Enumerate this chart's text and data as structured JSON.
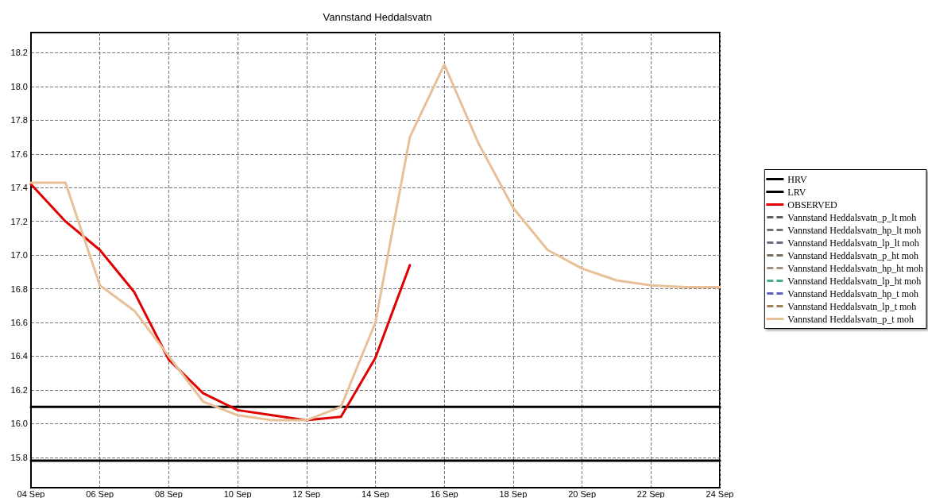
{
  "chart_data": {
    "type": "line",
    "title": "Vannstand Heddalsvatn",
    "x": [
      "--09-04",
      "--09-05",
      "--09-06",
      "--09-07",
      "--09-08",
      "--09-09",
      "--09-10",
      "--09-11",
      "--09-12",
      "--09-13",
      "--09-14",
      "--09-15",
      "--09-16",
      "--09-17",
      "--09-18",
      "--09-19",
      "--09-20",
      "--09-21",
      "--09-22",
      "--09-23",
      "--09-24"
    ],
    "series": [
      {
        "name": "HRV",
        "color": "#000000",
        "x": [
          "--09-04",
          "--09-24"
        ],
        "values": [
          16.1,
          16.1
        ]
      },
      {
        "name": "LRV",
        "color": "#000000",
        "x": [
          "--09-04",
          "--09-24"
        ],
        "values": [
          15.78,
          15.78
        ]
      },
      {
        "name": "OBSERVED",
        "color": "#e00000",
        "values": [
          17.42,
          17.2,
          17.03,
          16.78,
          16.38,
          16.18,
          16.08,
          16.05,
          16.02,
          16.04,
          16.39,
          16.94,
          null,
          null,
          null,
          null,
          null,
          null,
          null,
          null,
          null
        ]
      },
      {
        "name": "Vannstand Heddalsvatn_p_lt moh",
        "color": "#606060",
        "line_style": "dashed",
        "values": [
          null,
          null,
          null,
          null,
          null,
          null,
          null,
          null,
          null,
          null,
          null,
          null,
          null,
          null,
          null,
          null,
          null,
          null,
          null,
          null,
          null
        ]
      },
      {
        "name": "Vannstand Heddalsvatn_hp_lt moh",
        "color": "#707070",
        "line_style": "dashed",
        "values": [
          null,
          null,
          null,
          null,
          null,
          null,
          null,
          null,
          null,
          null,
          null,
          null,
          null,
          null,
          null,
          null,
          null,
          null,
          null,
          null,
          null
        ]
      },
      {
        "name": "Vannstand Heddalsvatn_lp_lt moh",
        "color": "#6a6a80",
        "line_style": "dashed",
        "values": [
          null,
          null,
          null,
          null,
          null,
          null,
          null,
          null,
          null,
          null,
          null,
          null,
          null,
          null,
          null,
          null,
          null,
          null,
          null,
          null,
          null
        ]
      },
      {
        "name": "Vannstand Heddalsvatn_p_ht moh",
        "color": "#7a7060",
        "line_style": "dashed",
        "values": [
          null,
          null,
          null,
          null,
          null,
          null,
          null,
          null,
          null,
          null,
          null,
          null,
          null,
          null,
          null,
          null,
          null,
          null,
          null,
          null,
          null
        ]
      },
      {
        "name": "Vannstand Heddalsvatn_hp_ht moh",
        "color": "#a09080",
        "line_style": "dashed",
        "values": [
          null,
          null,
          null,
          null,
          null,
          null,
          null,
          null,
          null,
          null,
          null,
          null,
          null,
          null,
          null,
          null,
          null,
          null,
          null,
          null,
          null
        ]
      },
      {
        "name": "Vannstand Heddalsvatn_lp_ht moh",
        "color": "#40b090",
        "line_style": "dashed",
        "values": [
          null,
          null,
          null,
          null,
          null,
          null,
          null,
          null,
          null,
          null,
          null,
          null,
          null,
          null,
          null,
          null,
          null,
          null,
          null,
          null,
          null
        ]
      },
      {
        "name": "Vannstand Heddalsvatn_hp_t moh",
        "color": "#6060c0",
        "line_style": "dashed",
        "values": [
          null,
          null,
          null,
          null,
          null,
          null,
          null,
          null,
          null,
          null,
          null,
          null,
          null,
          null,
          null,
          null,
          null,
          null,
          null,
          null,
          null
        ]
      },
      {
        "name": "Vannstand Heddalsvatn_lp_t moh",
        "color": "#a08060",
        "line_style": "dashed",
        "values": [
          null,
          null,
          null,
          null,
          null,
          null,
          null,
          null,
          null,
          null,
          null,
          null,
          null,
          null,
          null,
          null,
          null,
          null,
          null,
          null,
          null
        ]
      },
      {
        "name": "Vannstand Heddalsvatn_p_t moh",
        "color": "#e8c098",
        "values": [
          17.43,
          17.43,
          16.82,
          16.67,
          16.4,
          16.13,
          16.05,
          16.02,
          16.02,
          16.1,
          16.6,
          17.7,
          18.13,
          17.66,
          17.28,
          17.03,
          16.92,
          16.85,
          16.82,
          16.81,
          16.81
        ]
      }
    ],
    "xlim": [
      "--09-04",
      "--09-24"
    ],
    "xticks": [
      {
        "value": "--09-04",
        "label": "04 Sep"
      },
      {
        "value": "--09-06",
        "label": "06 Sep"
      },
      {
        "value": "--09-08",
        "label": "08 Sep"
      },
      {
        "value": "--09-10",
        "label": "10 Sep"
      },
      {
        "value": "--09-12",
        "label": "12 Sep"
      },
      {
        "value": "--09-14",
        "label": "14 Sep"
      },
      {
        "value": "--09-16",
        "label": "16 Sep"
      },
      {
        "value": "--09-18",
        "label": "18 Sep"
      },
      {
        "value": "--09-20",
        "label": "20 Sep"
      },
      {
        "value": "--09-22",
        "label": "22 Sep"
      },
      {
        "value": "--09-24",
        "label": "24 Sep"
      }
    ],
    "ylim": [
      15.62,
      18.32
    ],
    "yticks": [
      {
        "value": 15.8,
        "label": "15.8"
      },
      {
        "value": 16,
        "label": "16.0"
      },
      {
        "value": 16.2,
        "label": "16.2"
      },
      {
        "value": 16.4,
        "label": "16.4"
      },
      {
        "value": 16.6,
        "label": "16.6"
      },
      {
        "value": 16.8,
        "label": "16.8"
      },
      {
        "value": 17,
        "label": "17.0"
      },
      {
        "value": 17.2,
        "label": "17.2"
      },
      {
        "value": 17.4,
        "label": "17.4"
      },
      {
        "value": 17.6,
        "label": "17.6"
      },
      {
        "value": 17.8,
        "label": "17.8"
      },
      {
        "value": 18,
        "label": "18.0"
      },
      {
        "value": 18.2,
        "label": "18.2"
      }
    ],
    "grid": true,
    "legend": "right",
    "marker": "none",
    "line_style": "solid"
  }
}
